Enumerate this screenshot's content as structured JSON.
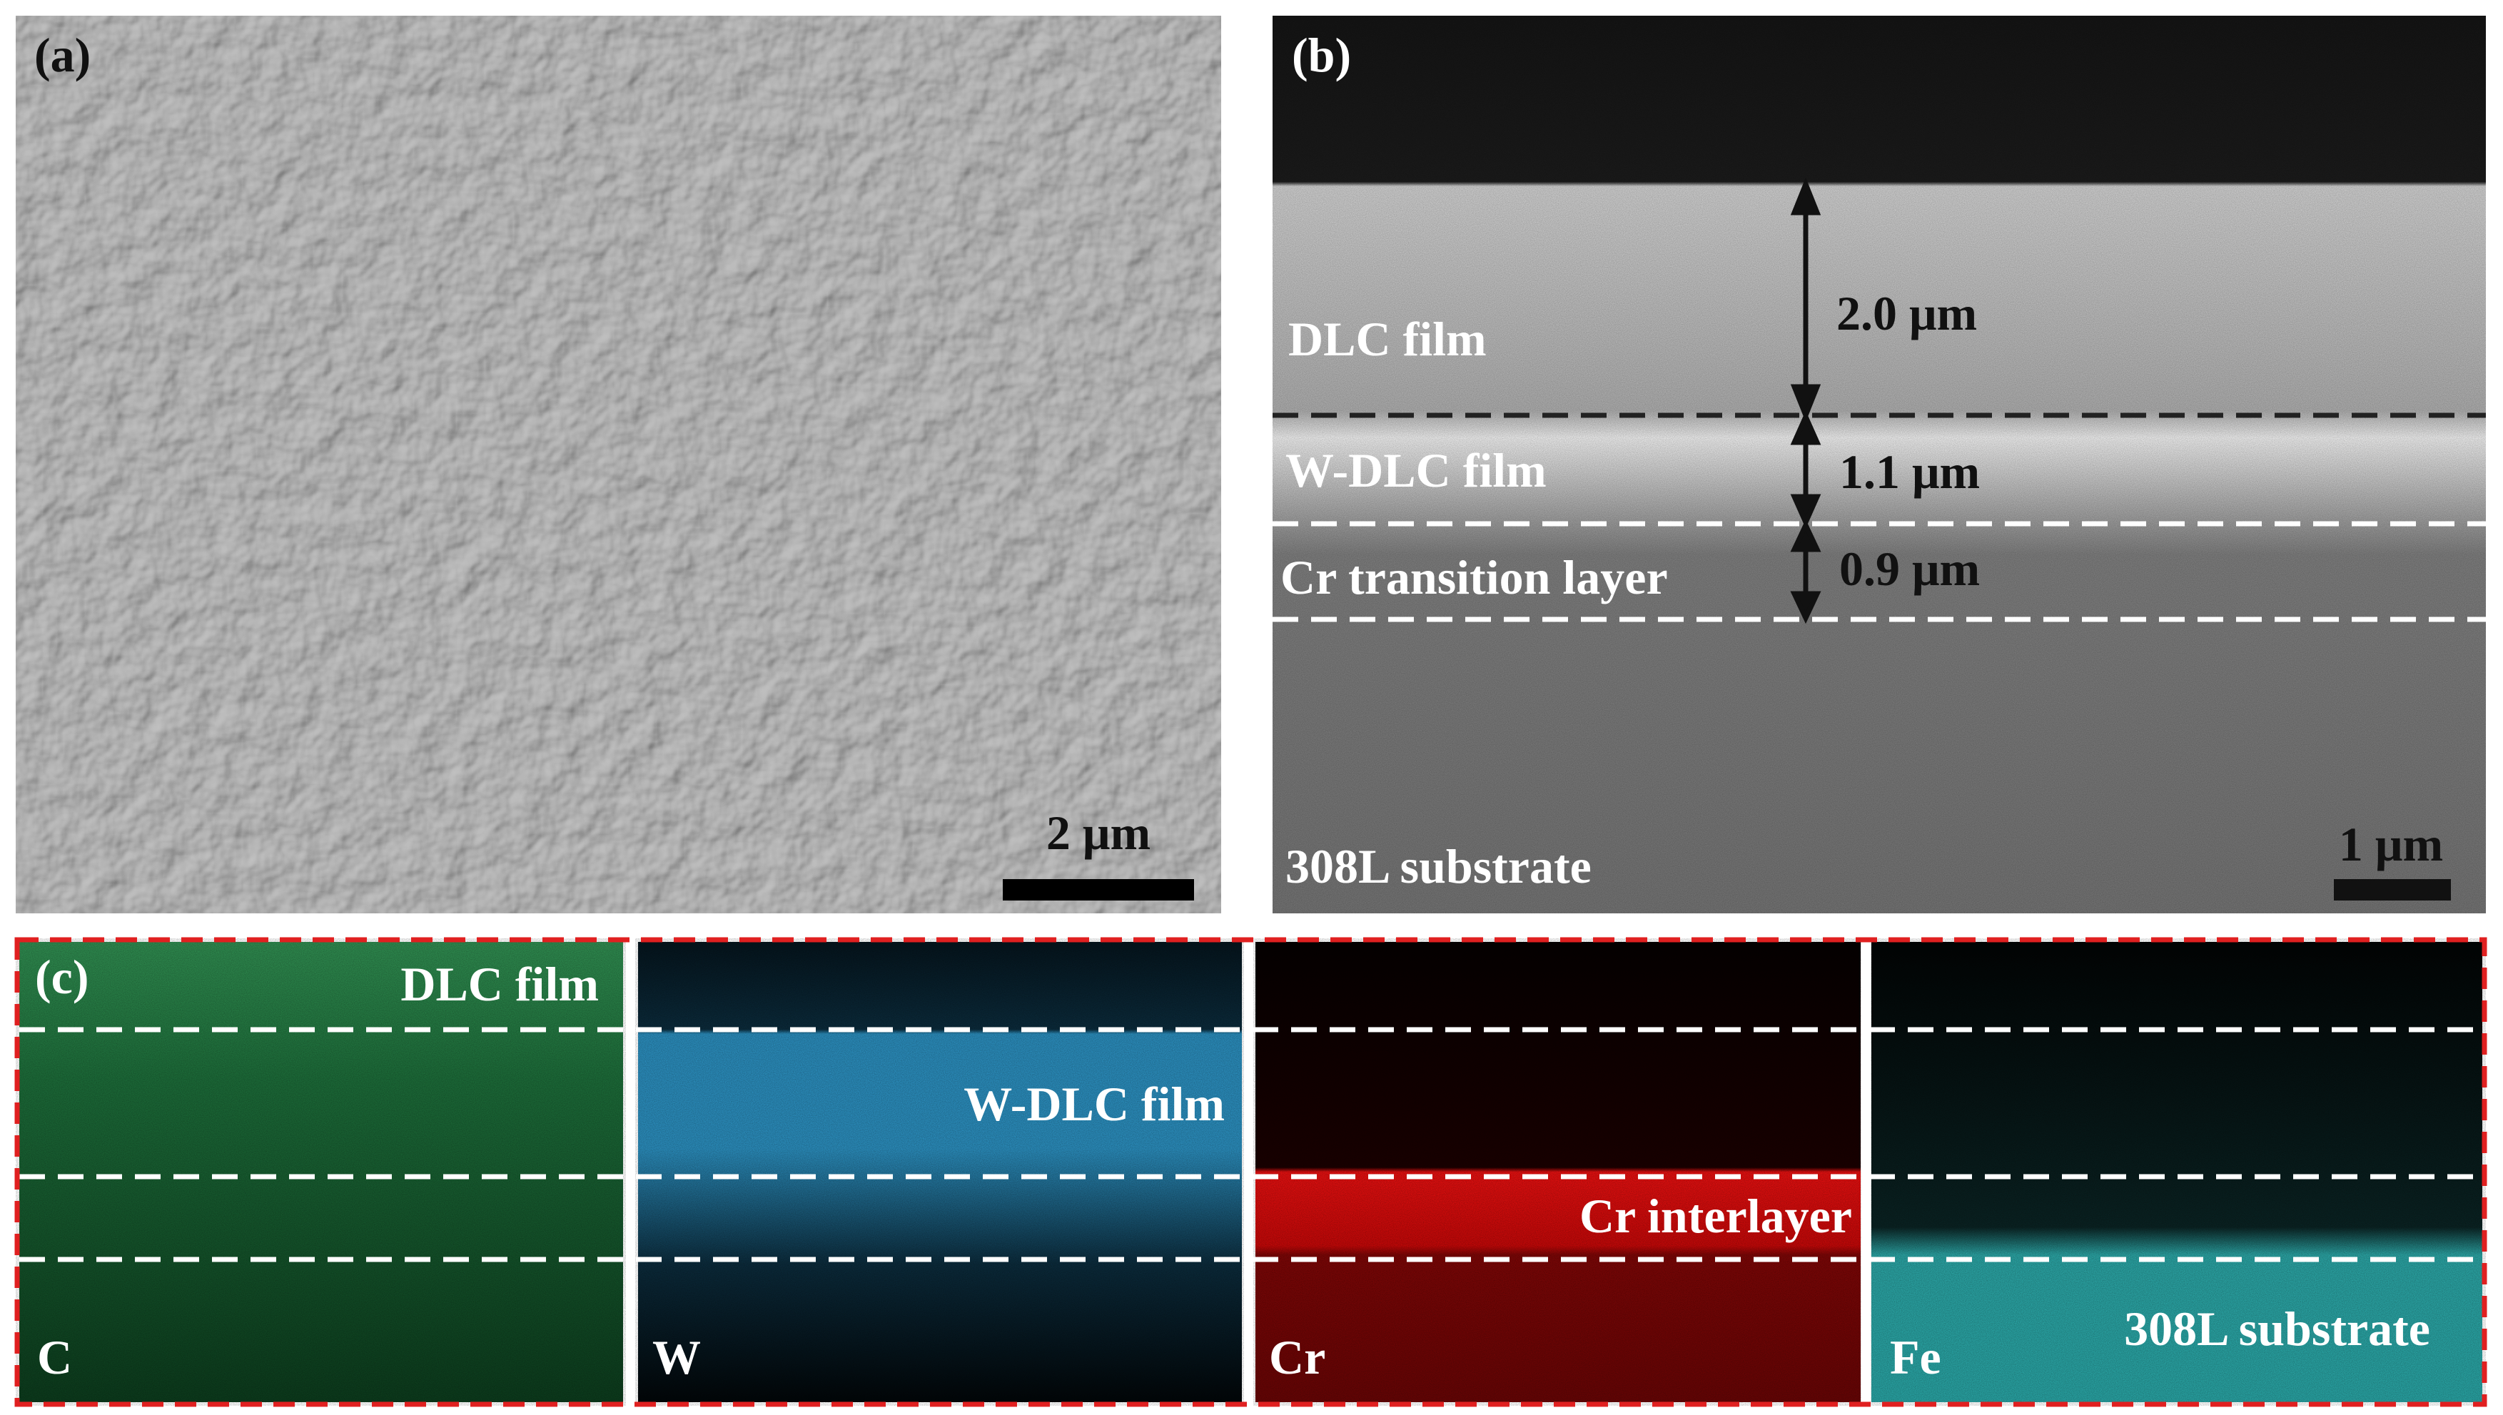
{
  "panel_a": {
    "label": "(a)",
    "scale_bar": "2 μm"
  },
  "panel_b": {
    "label": "(b)",
    "layers": [
      {
        "name": "DLC film",
        "thickness": "2.0 μm"
      },
      {
        "name": "W-DLC film",
        "thickness": "1.1 μm"
      },
      {
        "name": "Cr transition layer",
        "thickness": "0.9 μm"
      }
    ],
    "substrate": "308L substrate",
    "scale_bar": "1 μm"
  },
  "panel_c": {
    "label": "(c)",
    "maps": [
      {
        "element": "C",
        "annotation": "DLC film"
      },
      {
        "element": "W",
        "annotation": "W-DLC film"
      },
      {
        "element": "Cr",
        "annotation": "Cr interlayer"
      },
      {
        "element": "Fe",
        "annotation": "308L substrate"
      }
    ]
  }
}
